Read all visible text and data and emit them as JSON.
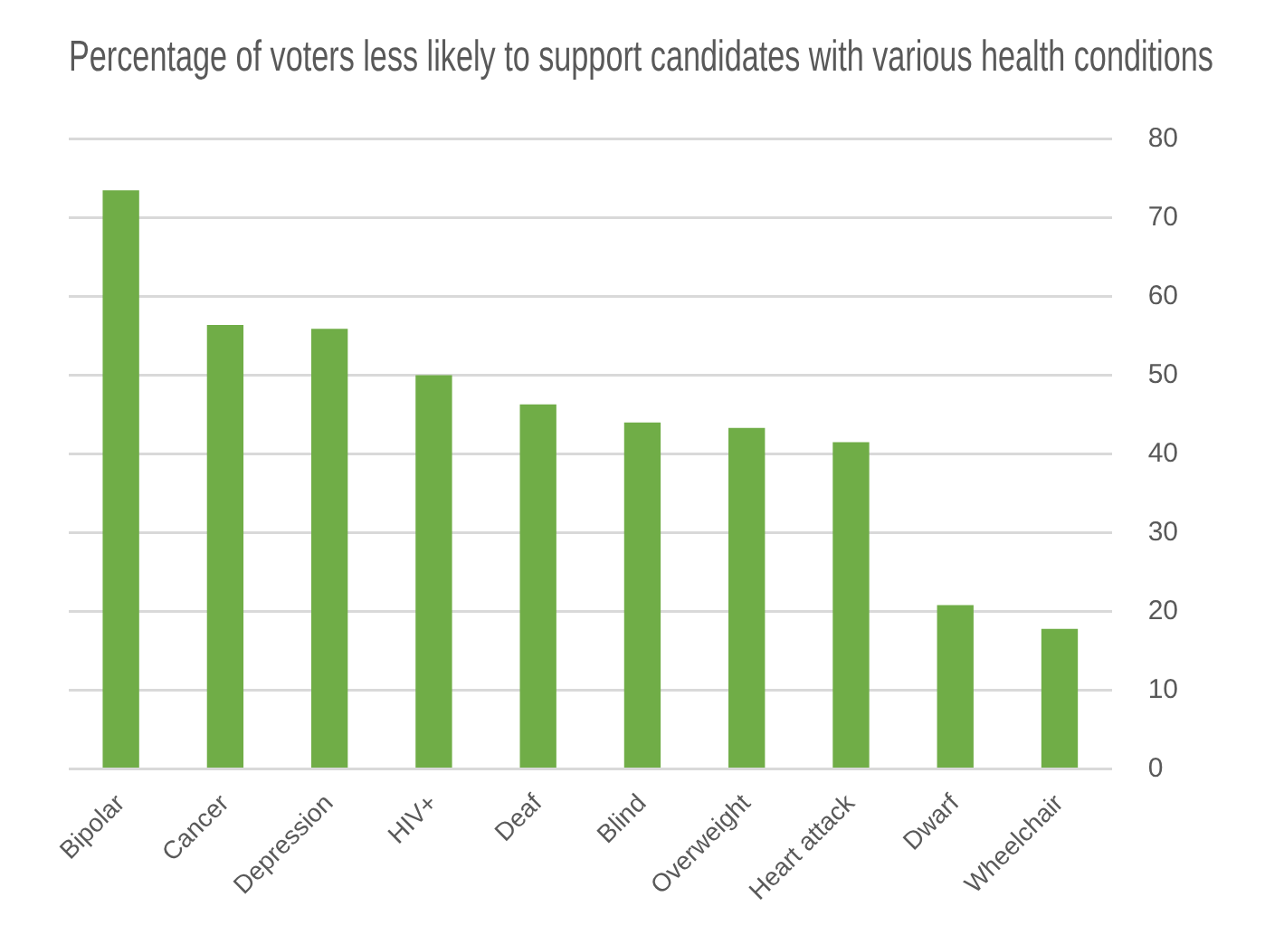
{
  "chart_data": {
    "type": "bar",
    "title": "Percentage of voters less likely to support candidates with various health conditions",
    "categories": [
      "Bipolar",
      "Cancer",
      "Depression",
      "HIV+",
      "Deaf",
      "Blind",
      "Overweight",
      "Heart attack",
      "Dwarf",
      "Wheelchair"
    ],
    "values": [
      73.5,
      56.4,
      55.9,
      50,
      46.3,
      44,
      43.3,
      41.5,
      20.8,
      17.8
    ],
    "color": "#70ad47",
    "ylim": [
      0,
      80
    ],
    "yticks": [
      0,
      10,
      20,
      30,
      40,
      50,
      60,
      70,
      80
    ],
    "grid": "y",
    "legend": false
  }
}
